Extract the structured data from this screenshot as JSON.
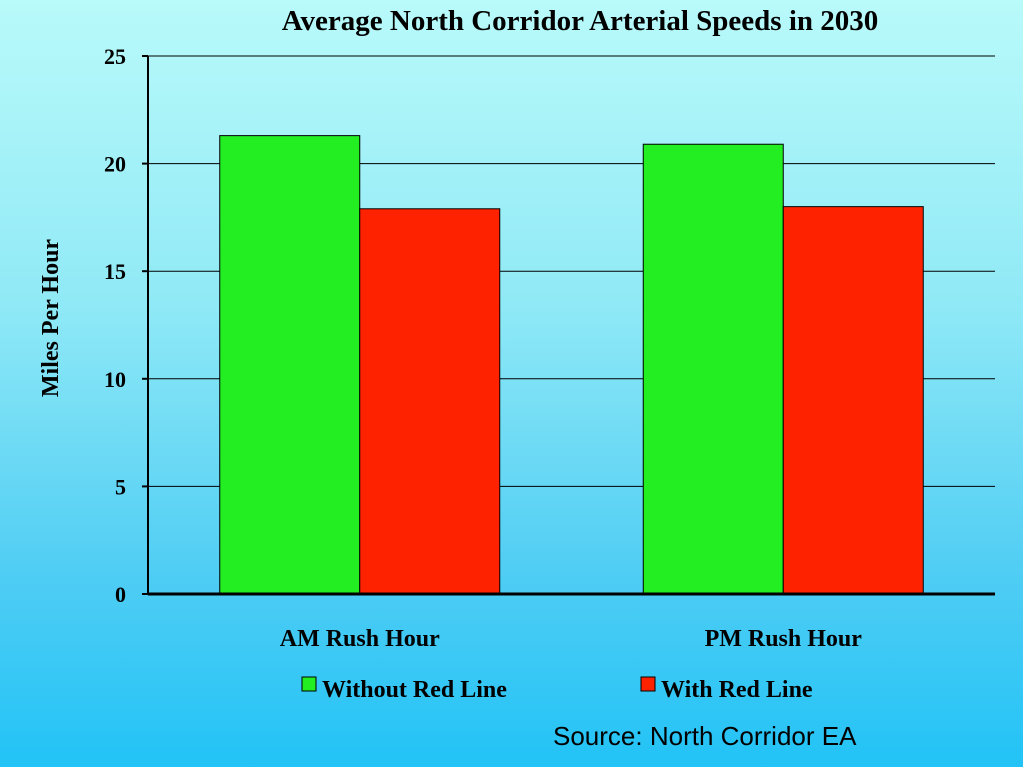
{
  "chart_data": {
    "type": "bar",
    "title": "Average North Corridor Arterial Speeds in 2030",
    "xlabel": "",
    "ylabel": "Miles Per Hour",
    "categories": [
      "AM Rush Hour",
      "PM Rush Hour"
    ],
    "series": [
      {
        "name": "Without Red Line",
        "values": [
          21.3,
          20.9
        ],
        "color": "#22ee22"
      },
      {
        "name": "With Red Line",
        "values": [
          17.9,
          18.0
        ],
        "color": "#ff2200"
      }
    ],
    "ylim": [
      0,
      25
    ],
    "yticks": [
      0,
      5,
      10,
      15,
      20,
      25
    ],
    "grid": true,
    "legend": "bottom"
  },
  "source": "Source: North Corridor EA"
}
